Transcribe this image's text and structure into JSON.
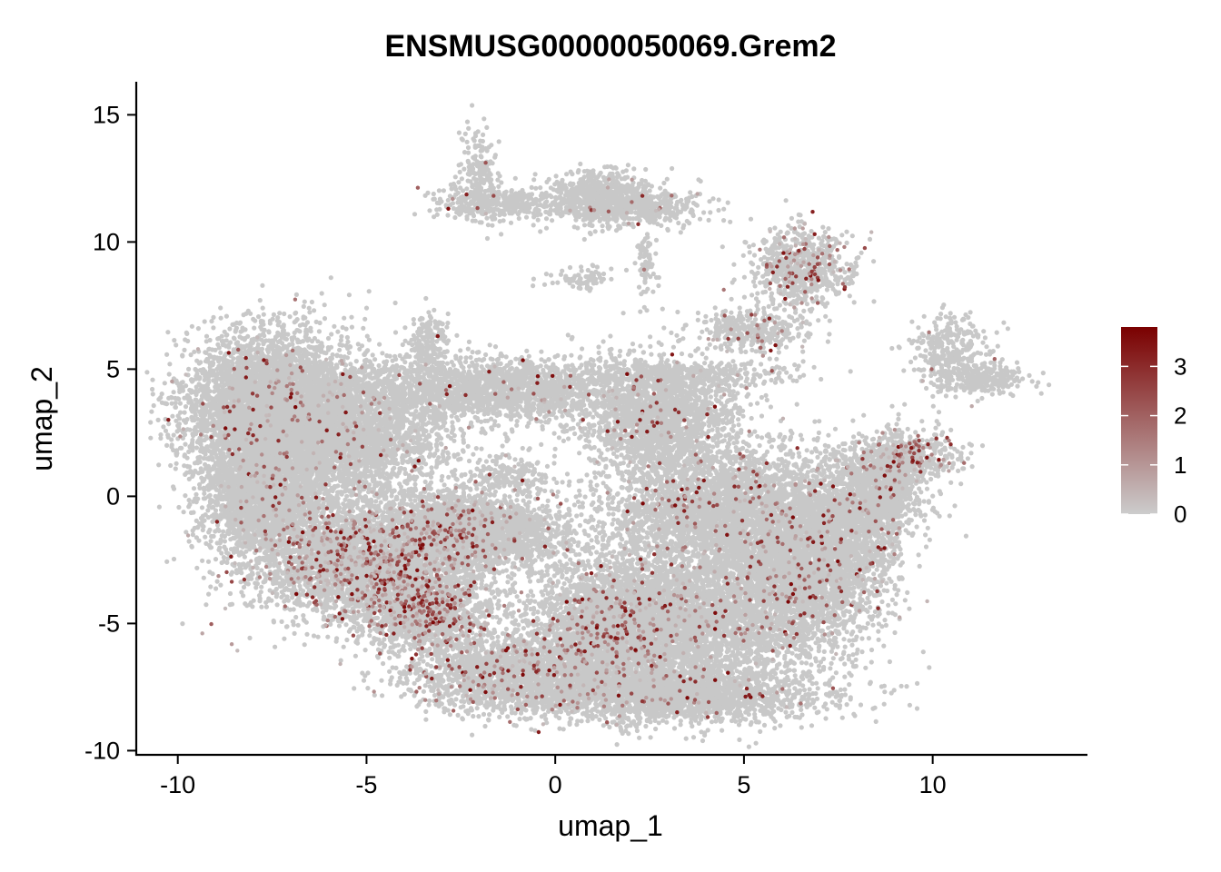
{
  "chart_data": {
    "type": "scatter",
    "title": "ENSMUSG00000050069.Grem2",
    "xlabel": "umap_1",
    "ylabel": "umap_2",
    "xlim": [
      -11.1,
      14.1
    ],
    "ylim": [
      -10.2,
      16.3
    ],
    "x_ticks": [
      -10,
      -5,
      0,
      5,
      10
    ],
    "x_tick_labels": [
      "-10",
      "-5",
      "0",
      "5",
      "10"
    ],
    "y_ticks": [
      -10,
      -5,
      0,
      5,
      10,
      15
    ],
    "y_tick_labels": [
      "-10",
      "-5",
      "0",
      "5",
      "10",
      "15"
    ],
    "grid": false,
    "legend_position": "right",
    "color_scale": {
      "low_color": "#cccccc",
      "high_color": "#7a0000",
      "range": [
        0,
        3.8
      ],
      "ticks": [
        0,
        1,
        2,
        3
      ],
      "tick_labels": [
        "0",
        "1",
        "2",
        "3"
      ]
    },
    "point_color_zero": "#c8c8c8",
    "clusters": [
      {
        "x": -7.6,
        "y": 3.5,
        "sx": 1.3,
        "sy": 1.7,
        "w": 12,
        "expr": 0.08
      },
      {
        "x": -7.8,
        "y": 0.0,
        "sx": 0.9,
        "sy": 1.4,
        "w": 6,
        "expr": 0.06
      },
      {
        "x": -5.3,
        "y": 2.5,
        "sx": 1.4,
        "sy": 1.6,
        "w": 7,
        "expr": 0.06
      },
      {
        "x": -5.0,
        "y": -2.5,
        "sx": 1.7,
        "sy": 1.4,
        "w": 10,
        "expr": 0.35
      },
      {
        "x": -3.4,
        "y": -4.5,
        "sx": 1.0,
        "sy": 0.9,
        "w": 4,
        "expr": 0.35
      },
      {
        "x": -2.5,
        "y": -1.2,
        "sx": 0.9,
        "sy": 0.8,
        "w": 3,
        "expr": 0.25
      },
      {
        "x": -1.5,
        "y": 4.2,
        "sx": 2.0,
        "sy": 0.7,
        "w": 5,
        "expr": 0.05
      },
      {
        "x": -1.5,
        "y": -1.5,
        "sx": 1.2,
        "sy": 0.8,
        "w": 3,
        "expr": 0.08
      },
      {
        "x": -1.2,
        "y": -7.0,
        "sx": 1.6,
        "sy": 0.9,
        "w": 5,
        "expr": 0.2
      },
      {
        "x": 2.7,
        "y": 3.2,
        "sx": 1.2,
        "sy": 1.3,
        "w": 5,
        "expr": 0.1
      },
      {
        "x": 1.6,
        "y": -5.3,
        "sx": 1.2,
        "sy": 1.4,
        "w": 6,
        "expr": 0.22
      },
      {
        "x": 3.5,
        "y": -5.0,
        "sx": 2.2,
        "sy": 1.8,
        "w": 10,
        "expr": 0.1
      },
      {
        "x": 4.5,
        "y": -0.5,
        "sx": 2.0,
        "sy": 1.5,
        "w": 9,
        "expr": 0.12
      },
      {
        "x": 6.6,
        "y": -3.0,
        "sx": 1.2,
        "sy": 1.6,
        "w": 6,
        "expr": 0.18
      },
      {
        "x": 3.2,
        "y": -7.8,
        "sx": 2.3,
        "sy": 0.6,
        "w": 5,
        "expr": 0.06
      },
      {
        "x": 7.8,
        "y": -1.0,
        "sx": 0.9,
        "sy": 1.5,
        "w": 3,
        "expr": 0.08
      },
      {
        "x": 8.6,
        "y": 0.3,
        "sx": 0.6,
        "sy": 1.0,
        "w": 2,
        "expr": 0.06
      },
      {
        "x": 9.3,
        "y": 1.5,
        "sx": 0.8,
        "sy": 0.6,
        "w": 1.5,
        "expr": 0.45
      },
      {
        "x": 6.5,
        "y": 9.0,
        "sx": 0.8,
        "sy": 0.9,
        "w": 2,
        "expr": 0.35
      },
      {
        "x": 5.2,
        "y": 6.5,
        "sx": 0.9,
        "sy": 0.5,
        "w": 1,
        "expr": 0.25
      },
      {
        "x": 10.5,
        "y": 5.5,
        "sx": 0.6,
        "sy": 0.9,
        "w": 1,
        "expr": 0.04
      },
      {
        "x": 11.5,
        "y": 4.6,
        "sx": 0.6,
        "sy": 0.3,
        "w": 0.5,
        "expr": 0.03
      },
      {
        "x": 1.2,
        "y": 11.7,
        "sx": 0.8,
        "sy": 0.6,
        "w": 2,
        "expr": 0.05
      },
      {
        "x": -1.5,
        "y": 11.5,
        "sx": 1.0,
        "sy": 0.4,
        "w": 1,
        "expr": 0.05
      },
      {
        "x": -2.0,
        "y": 12.6,
        "sx": 0.3,
        "sy": 1.0,
        "w": 0.5,
        "expr": 0.05
      },
      {
        "x": 2.7,
        "y": 11.3,
        "sx": 0.8,
        "sy": 0.4,
        "w": 0.7,
        "expr": 0.08
      },
      {
        "x": 2.4,
        "y": 9.2,
        "sx": 0.15,
        "sy": 0.8,
        "w": 0.2,
        "expr": 0.02
      },
      {
        "x": 0.6,
        "y": 8.6,
        "sx": 0.5,
        "sy": 0.3,
        "w": 0.2,
        "expr": 0.02
      },
      {
        "x": 3.6,
        "y": 4.8,
        "sx": 1.8,
        "sy": 0.3,
        "w": 1,
        "expr": 0.05
      },
      {
        "x": -1.2,
        "y": 0.8,
        "sx": 0.6,
        "sy": 0.5,
        "w": 0.5,
        "expr": 0.03
      },
      {
        "x": -3.3,
        "y": 6.0,
        "sx": 0.3,
        "sy": 0.8,
        "w": 0.5,
        "expr": 0.03
      }
    ]
  }
}
